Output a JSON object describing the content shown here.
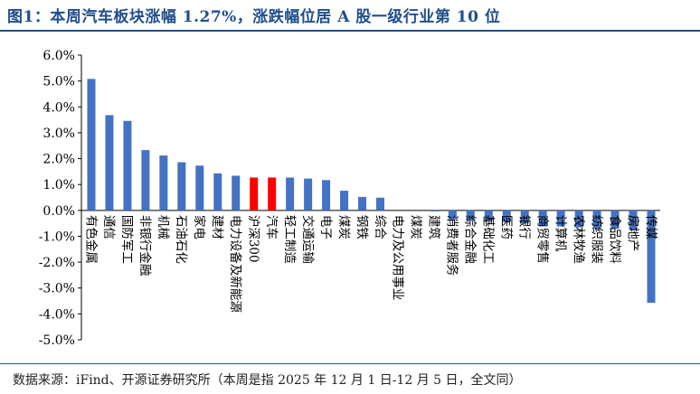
{
  "title": "图1：本周汽车板块涨幅 1.27%，涨跌幅位居 A 股一级行业第 10 位",
  "source": "数据来源：iFind、开源证券研究所（本周是指 2025 年 12 月 1 日-12 月 5 日，全文同）",
  "colors": {
    "bar": "#4472C4",
    "highlight": "#FF0000",
    "title": "#1F4E8C"
  },
  "chart_data": {
    "type": "bar",
    "title": "",
    "xlabel": "",
    "ylabel": "",
    "ylim": [
      -5.0,
      6.0
    ],
    "y_ticks": [
      "6.0%",
      "5.0%",
      "4.0%",
      "3.0%",
      "2.0%",
      "1.0%",
      "0.0%",
      "-1.0%",
      "-2.0%",
      "-3.0%",
      "-4.0%",
      "-5.0%"
    ],
    "grid": false,
    "legend": "none",
    "highlight": [
      "沪深300",
      "汽车"
    ],
    "categories": [
      "有色金属",
      "通信",
      "国防军工",
      "非银行金融",
      "机械",
      "石油石化",
      "家电",
      "建材",
      "电力设备及新能源",
      "沪深300",
      "汽车",
      "轻工制造",
      "交通运输",
      "电子",
      "煤炭",
      "钢铁",
      "综合",
      "电力及公用事业",
      "煤炭",
      "建筑",
      "消费者服务",
      "综合金融",
      "基础化工",
      "医药",
      "银行",
      "商贸零售",
      "计算机",
      "农林牧渔",
      "纺织服装",
      "食品饮料",
      "房地产",
      "传媒"
    ],
    "values": [
      5.08,
      3.68,
      3.46,
      2.33,
      2.12,
      1.86,
      1.73,
      1.43,
      1.34,
      1.27,
      1.27,
      1.27,
      1.23,
      1.17,
      0.76,
      0.52,
      0.49,
      0.0,
      0.0,
      -0.04,
      -0.35,
      -0.4,
      -0.41,
      -0.45,
      -0.5,
      -0.62,
      -0.62,
      -0.66,
      -0.71,
      -0.71,
      -0.76,
      -3.57
    ]
  }
}
